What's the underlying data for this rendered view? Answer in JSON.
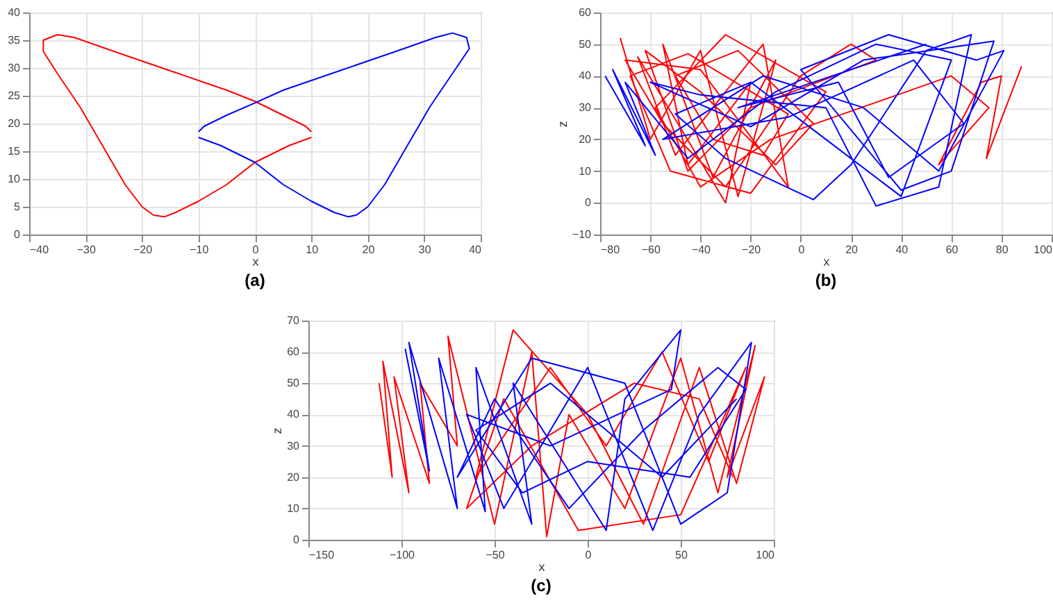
{
  "chart_data": [
    {
      "type": "line",
      "title": "(a)",
      "xlabel": "x",
      "xlim": [
        -40,
        40
      ],
      "xticks": [
        -40,
        -30,
        -20,
        -10,
        0,
        10,
        20,
        30,
        40
      ],
      "ylim": [
        0,
        40
      ],
      "yticks": [
        0,
        5,
        10,
        15,
        20,
        25,
        30,
        35,
        40
      ],
      "grid": true,
      "line_style": "solid",
      "series": [
        {
          "color": "#ff0000",
          "x": [
            10,
            6,
            0,
            -5,
            -10,
            -14,
            -16,
            -18,
            -20,
            -23,
            -27,
            -31,
            -35,
            -37.5,
            -37.5,
            -35,
            -32,
            -25,
            -15,
            -5,
            0,
            5,
            9,
            10
          ],
          "values": [
            17.5,
            16,
            13,
            9,
            6,
            4,
            3.2,
            3.5,
            5,
            9,
            16,
            23,
            29,
            33,
            35,
            36,
            35.5,
            33,
            29.5,
            26,
            24,
            21.5,
            19.5,
            18.5
          ]
        },
        {
          "color": "#0000ff",
          "x": [
            -10,
            -6,
            0,
            5,
            10,
            14,
            16.5,
            18,
            20,
            23,
            27,
            31,
            35,
            38,
            37.5,
            35,
            32,
            25,
            15,
            5,
            0,
            -5,
            -9,
            -10
          ],
          "values": [
            17.5,
            16,
            13,
            9,
            6,
            4,
            3.2,
            3.5,
            5,
            9,
            16,
            23,
            29,
            33.5,
            35.5,
            36.3,
            35.5,
            33,
            29.5,
            26,
            23.7,
            21.5,
            19.5,
            18.5
          ]
        }
      ]
    },
    {
      "type": "line",
      "title": "(b)",
      "xlabel": "x",
      "ylabel": "z",
      "xlim": [
        -80,
        100
      ],
      "xticks": [
        -80,
        -60,
        -40,
        -20,
        0,
        20,
        40,
        60,
        80,
        100
      ],
      "ylim": [
        -10,
        60
      ],
      "yticks": [
        -10,
        0,
        10,
        20,
        30,
        40,
        50,
        60
      ],
      "grid": true,
      "line_style": "solid",
      "series": [
        {
          "color": "#ff0000",
          "x": [
            -72,
            -60,
            -40,
            -25,
            -10,
            -35,
            -55,
            -45,
            -20,
            -30,
            -65,
            -50,
            -15,
            -5,
            -40,
            -70,
            -55,
            -30,
            0,
            20,
            30,
            -20,
            -45,
            -62,
            -40,
            -10,
            5,
            -25,
            -50,
            -35,
            -15,
            -5,
            -45,
            -68,
            -52,
            -20,
            10,
            -30,
            -58,
            -40,
            -12,
            60,
            75,
            55,
            72,
            80,
            74,
            88
          ],
          "values": [
            52,
            20,
            48,
            2,
            45,
            8,
            50,
            12,
            38,
            0,
            46,
            15,
            50,
            5,
            42,
            45,
            25,
            5,
            40,
            50,
            45,
            30,
            10,
            48,
            35,
            12,
            25,
            48,
            40,
            20,
            15,
            28,
            47,
            40,
            10,
            3,
            35,
            53,
            30,
            5,
            20,
            40,
            30,
            12,
            38,
            40,
            14,
            43
          ]
        },
        {
          "color": "#0000ff",
          "x": [
            -78,
            -62,
            -75,
            -58,
            -70,
            -45,
            -10,
            30,
            60,
            40,
            10,
            -20,
            -50,
            -30,
            5,
            20,
            50,
            68,
            55,
            30,
            10,
            -40,
            -60,
            -20,
            25,
            77,
            60,
            40,
            0,
            35,
            70,
            81,
            55,
            25,
            -15,
            -55,
            -5,
            45,
            65,
            35,
            15,
            -25,
            50
          ],
          "values": [
            40,
            18,
            42,
            15,
            38,
            14,
            35,
            50,
            45,
            2,
            20,
            38,
            28,
            14,
            1,
            12,
            48,
            53,
            5,
            -1,
            30,
            34,
            38,
            24,
            45,
            51,
            10,
            4,
            42,
            53,
            45,
            48,
            10,
            30,
            40,
            20,
            27,
            45,
            25,
            8,
            38,
            30,
            50
          ]
        }
      ]
    },
    {
      "type": "line",
      "title": "(c)",
      "xlabel": "x",
      "ylabel": "z",
      "xlim": [
        -150,
        100
      ],
      "xticks": [
        -150,
        -100,
        -50,
        0,
        50,
        100
      ],
      "ylim": [
        0,
        70
      ],
      "yticks": [
        0,
        10,
        20,
        30,
        40,
        50,
        60,
        70
      ],
      "grid": true,
      "line_style": "solid",
      "series": [
        {
          "color": "#ff0000",
          "x": [
            -112,
            -105,
            -110,
            -96,
            -104,
            -85,
            -90,
            -70,
            -75,
            -50,
            -30,
            -22,
            -10,
            20,
            50,
            70,
            90,
            75,
            95,
            80,
            60,
            30,
            0,
            -40,
            -60,
            -20,
            10,
            40,
            65,
            85,
            50,
            -5,
            -45,
            -65,
            -30,
            25,
            60,
            78
          ],
          "values": [
            50,
            20,
            57,
            15,
            52,
            18,
            50,
            30,
            65,
            5,
            60,
            1,
            40,
            10,
            58,
            15,
            62,
            20,
            52,
            18,
            55,
            5,
            40,
            67,
            20,
            55,
            30,
            60,
            25,
            55,
            8,
            3,
            45,
            10,
            30,
            50,
            45,
            20
          ]
        },
        {
          "color": "#0000ff",
          "x": [
            -98,
            -85,
            -96,
            -70,
            -80,
            -55,
            -60,
            -30,
            -40,
            10,
            20,
            50,
            45,
            -20,
            -65,
            -45,
            0,
            35,
            60,
            88,
            75,
            50,
            20,
            -30,
            -70,
            -50,
            -10,
            30,
            70,
            85,
            55,
            0,
            -35,
            -60,
            -20,
            40,
            80
          ],
          "values": [
            61,
            22,
            63,
            10,
            58,
            9,
            55,
            5,
            50,
            3,
            45,
            67,
            48,
            30,
            40,
            10,
            55,
            3,
            40,
            63,
            15,
            5,
            50,
            58,
            20,
            45,
            10,
            35,
            55,
            48,
            20,
            25,
            15,
            35,
            50,
            20,
            45
          ]
        }
      ]
    }
  ]
}
